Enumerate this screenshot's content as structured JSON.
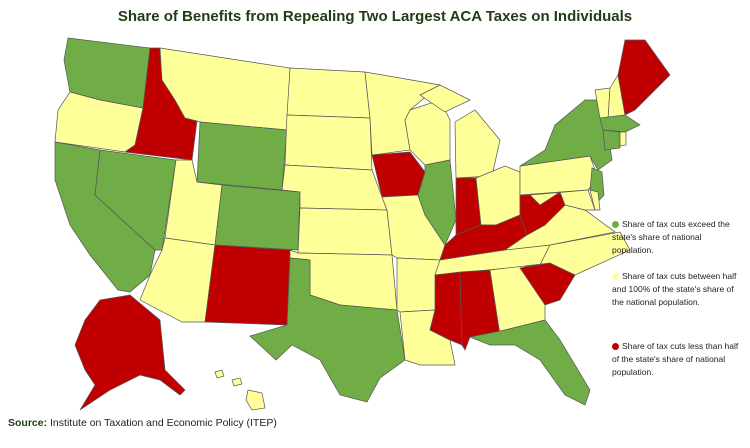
{
  "title": "Share of Benefits from Repealing Two Largest ACA Taxes on Individuals",
  "legend": [
    {
      "label": "Share of tax cuts exceed the state's share of national population.",
      "color": "#70ad47"
    },
    {
      "label": "Share of tax cuts between half and 100% of the state's share of the national population.",
      "color": "#ffff99"
    },
    {
      "label": "Share of tax cuts less than half of the state's share of national population.",
      "color": "#c00000"
    }
  ],
  "source": {
    "label": "Source:",
    "text": "Institute on Taxation and Economic Policy (ITEP)"
  }
}
